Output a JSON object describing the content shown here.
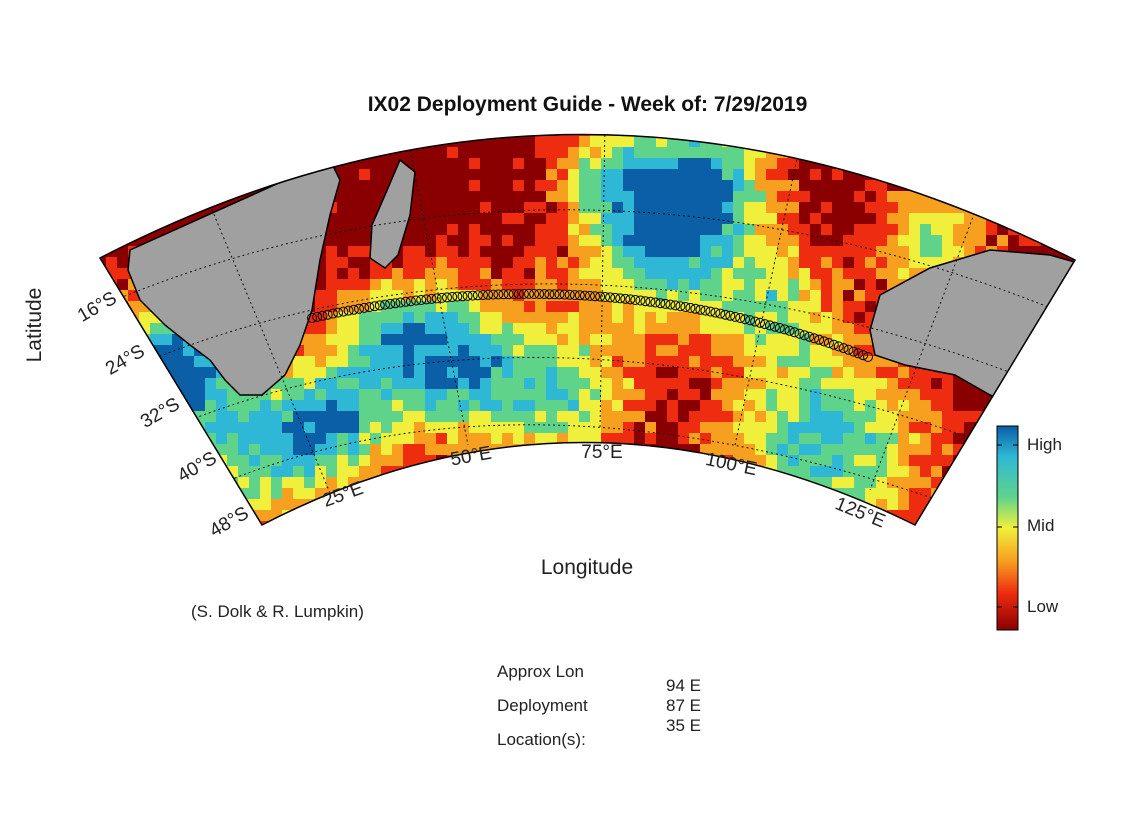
{
  "title": "IX02 Deployment Guide - Week of: 7/29/2019",
  "axes": {
    "ylabel": "Latitude",
    "xlabel": "Longitude",
    "lat_ticks": [
      "16°S",
      "24°S",
      "32°S",
      "40°S",
      "48°S"
    ],
    "lon_ticks": [
      "25°E",
      "50°E",
      "75°E",
      "100°E",
      "125°E"
    ]
  },
  "credit": "(S. Dolk & R. Lumpkin)",
  "colorbar": {
    "labels": [
      "High",
      "Mid",
      "Low"
    ],
    "colors": [
      "#0a5fa6",
      "#2fb8d6",
      "#5fd38a",
      "#f0f03c",
      "#f7a020",
      "#ee2c10",
      "#8a0000"
    ]
  },
  "deployment_info": {
    "label_lines": [
      "Approx Lon",
      "Deployment",
      "Location(s):"
    ],
    "locations": [
      "94 E",
      "87 E",
      "35 E"
    ]
  },
  "map": {
    "land_color": "#a0a0a0",
    "track_color": "#000000",
    "high_color": "#1a78b8",
    "low_color": "#7a0000",
    "regions": [
      "Africa",
      "Madagascar",
      "Australia"
    ]
  }
}
